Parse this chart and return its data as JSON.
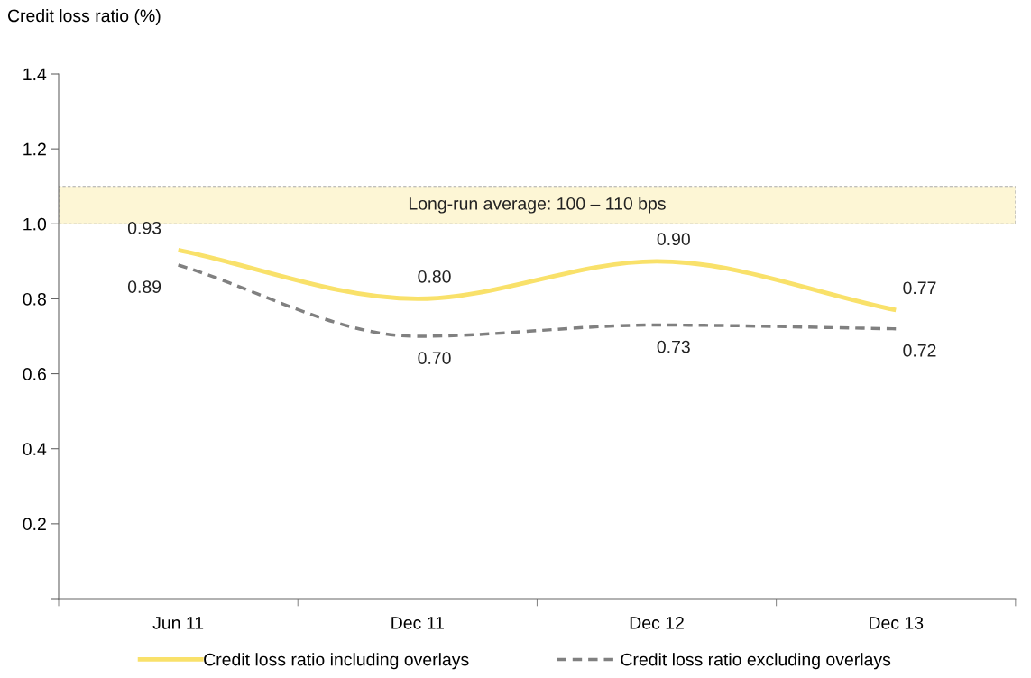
{
  "chart_data": {
    "type": "line",
    "ylabel": "Credit loss ratio (%)",
    "categories": [
      "Jun 11",
      "Dec 11",
      "Dec 12",
      "Dec 13"
    ],
    "series": [
      {
        "name": "Credit loss ratio including overlays",
        "color": "#f9e16a",
        "values": [
          0.93,
          0.8,
          0.9,
          0.77
        ],
        "value_labels": [
          "0.93",
          "0.80",
          "0.90",
          "0.77"
        ],
        "line_style": "solid"
      },
      {
        "name": "Credit loss ratio excluding overlays",
        "color": "#808080",
        "values": [
          0.89,
          0.7,
          0.73,
          0.72
        ],
        "value_labels": [
          "0.89",
          "0.70",
          "0.73",
          "0.72"
        ],
        "line_style": "dashed"
      }
    ],
    "ylim": [
      0,
      1.4
    ],
    "yticks": [
      {
        "value": 0,
        "label": null
      },
      0.2,
      0.4,
      0.6,
      0.8,
      {
        "value": 1.0,
        "label": "1.0"
      },
      1.2,
      1.4
    ],
    "bands": [
      {
        "axis": "y",
        "from": 1.0,
        "to": 1.1,
        "label": "Long-run average: 100 – 110 bps",
        "color": "#fdf6d5"
      }
    ],
    "grid": false,
    "legend": "bottom",
    "marker": "none"
  }
}
